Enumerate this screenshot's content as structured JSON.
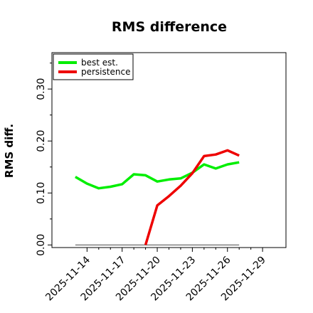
{
  "chart_data": {
    "type": "line",
    "title": "RMS difference",
    "ylabel": "RMS diff.",
    "xlabel": "",
    "ylim": [
      -0.005,
      0.37
    ],
    "xlim": [
      "2025-11-11",
      "2025-11-31"
    ],
    "y_ticks": [
      0.0,
      0.1,
      0.2,
      0.3
    ],
    "y_tick_labels": [
      "0.00",
      "0.10",
      "0.20",
      "0.30"
    ],
    "y_minor_ticks": [
      0.05,
      0.15,
      0.25,
      0.35
    ],
    "x_ticks": [
      "2025-11-14",
      "2025-11-17",
      "2025-11-20",
      "2025-11-23",
      "2025-11-26",
      "2025-11-29"
    ],
    "x_minor_ticks": [
      "2025-11-15",
      "2025-11-16",
      "2025-11-18",
      "2025-11-19",
      "2025-11-21",
      "2025-11-22",
      "2025-11-24",
      "2025-11-25",
      "2025-11-27",
      "2025-11-28"
    ],
    "legend_position": "top-left",
    "grid": false,
    "series": [
      {
        "name": "best est.",
        "color": "#00ee00",
        "x": [
          "2025-11-13",
          "2025-11-14",
          "2025-11-15",
          "2025-11-16",
          "2025-11-17",
          "2025-11-18",
          "2025-11-19",
          "2025-11-20",
          "2025-11-21",
          "2025-11-22",
          "2025-11-23",
          "2025-11-24",
          "2025-11-25",
          "2025-11-26",
          "2025-11-27"
        ],
        "values": [
          0.131,
          0.118,
          0.109,
          0.112,
          0.117,
          0.136,
          0.134,
          0.122,
          0.126,
          0.128,
          0.139,
          0.155,
          0.147,
          0.155,
          0.159
        ]
      },
      {
        "name": "persistence",
        "color": "#ee0000",
        "x": [
          "2025-11-19",
          "2025-11-20",
          "2025-11-21",
          "2025-11-22",
          "2025-11-23",
          "2025-11-24",
          "2025-11-25",
          "2025-11-26",
          "2025-11-27"
        ],
        "values": [
          0.0,
          0.076,
          0.094,
          0.114,
          0.138,
          0.171,
          0.174,
          0.182,
          0.172
        ]
      }
    ],
    "reference_line": {
      "color": "#808080",
      "x": [
        "2025-11-13",
        "2025-11-27"
      ],
      "values": [
        0.0,
        0.0
      ]
    }
  }
}
